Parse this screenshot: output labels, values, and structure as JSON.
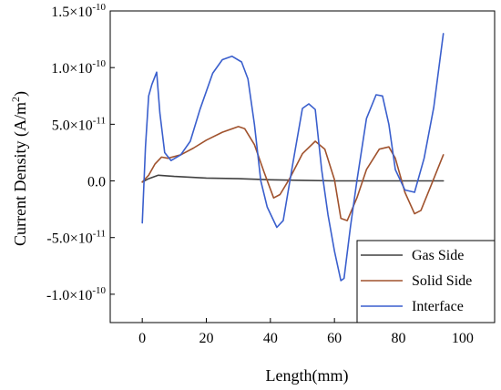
{
  "chart_data": {
    "type": "line",
    "xlabel": "Length(mm)",
    "ylabel_main": "Current Density (A/m",
    "ylabel_sup": "2",
    "ylabel_tail": ")",
    "xlim": [
      -10,
      110
    ],
    "ylim": [
      -1.25e-10,
      1.5e-10
    ],
    "xticks": [
      {
        "value": 0,
        "label": "0"
      },
      {
        "value": 20,
        "label": "20"
      },
      {
        "value": 40,
        "label": "40"
      },
      {
        "value": 60,
        "label": "60"
      },
      {
        "value": 80,
        "label": "80"
      },
      {
        "value": 100,
        "label": "100"
      }
    ],
    "yticks": [
      {
        "value": 1.5e-10,
        "base": "1.5×10",
        "exp": "-10"
      },
      {
        "value": 1e-10,
        "base": "1.0×10",
        "exp": "-10"
      },
      {
        "value": 5e-11,
        "base": "5.0×10",
        "exp": "-11"
      },
      {
        "value": 0,
        "base": "0.0",
        "exp": ""
      },
      {
        "value": -5e-11,
        "base": "-5.0×10",
        "exp": "-11"
      },
      {
        "value": -1e-10,
        "base": "-1.0×10",
        "exp": "-10"
      }
    ],
    "legend_position": "bottom-right",
    "series": [
      {
        "name": "Gas Side",
        "color": "#404040",
        "x": [
          0,
          2,
          5,
          10,
          20,
          30,
          40,
          50,
          60,
          70,
          80,
          94
        ],
        "y": [
          -1e-12,
          2e-12,
          5e-12,
          4e-12,
          2.5e-12,
          2e-12,
          1e-12,
          5e-13,
          0,
          0,
          0,
          0
        ]
      },
      {
        "name": "Solid Side",
        "color": "#a0522d",
        "x": [
          0,
          2,
          4,
          6,
          8,
          12,
          16,
          20,
          25,
          30,
          32,
          35,
          38,
          41,
          43,
          46,
          50,
          54,
          57,
          60,
          62,
          64,
          67,
          70,
          74,
          77,
          79,
          82,
          85,
          87,
          90,
          94
        ],
        "y": [
          -1e-12,
          5e-12,
          1.5e-11,
          2.1e-11,
          2e-11,
          2.3e-11,
          2.9e-11,
          3.6e-11,
          4.3e-11,
          4.8e-11,
          4.6e-11,
          3.2e-11,
          8e-12,
          -1.5e-11,
          -1.2e-11,
          2e-12,
          2.4e-11,
          3.5e-11,
          2.8e-11,
          1e-12,
          -3.3e-11,
          -3.5e-11,
          -1.5e-11,
          1e-11,
          2.8e-11,
          3e-11,
          2e-11,
          -1e-11,
          -2.9e-11,
          -2.6e-11,
          -5e-12,
          2.3e-11
        ]
      },
      {
        "name": "Interface",
        "color": "#3a5fcd",
        "x": [
          0,
          1,
          2,
          3,
          4.5,
          5.5,
          7,
          9,
          12,
          15,
          18,
          22,
          25,
          28,
          31,
          33,
          35,
          37,
          39,
          42,
          44,
          47,
          50,
          52,
          54,
          56,
          58,
          60,
          62,
          63,
          65,
          67,
          70,
          73,
          75,
          77,
          79,
          82,
          85,
          88,
          91,
          94
        ],
        "y": [
          -3.7e-11,
          3e-11,
          7.5e-11,
          8.5e-11,
          9.6e-11,
          6e-11,
          2.5e-11,
          1.8e-11,
          2.3e-11,
          3.5e-11,
          6.3e-11,
          9.5e-11,
          1.07e-10,
          1.1e-10,
          1.05e-10,
          9e-11,
          5e-11,
          0,
          -2.3e-11,
          -4.1e-11,
          -3.5e-11,
          1.5e-11,
          6.4e-11,
          6.8e-11,
          6.3e-11,
          1e-11,
          -3e-11,
          -6.2e-11,
          -8.8e-11,
          -8.6e-11,
          -4e-11,
          0,
          5.5e-11,
          7.6e-11,
          7.5e-11,
          5e-11,
          1e-11,
          -8e-12,
          -1e-11,
          2e-11,
          6.5e-11,
          1.3e-10
        ]
      }
    ]
  }
}
